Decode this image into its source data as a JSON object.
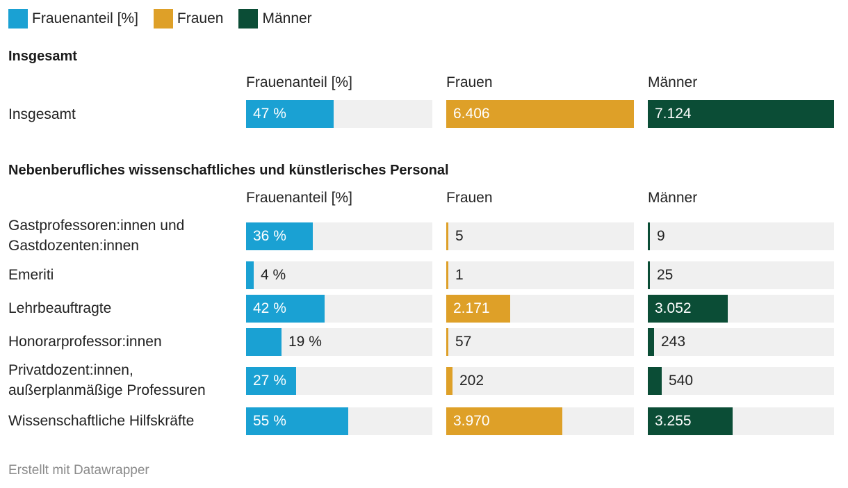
{
  "legend": [
    {
      "label": "Frauenanteil [%]",
      "color": "#1aa1d3"
    },
    {
      "label": "Frauen",
      "color": "#dea028"
    },
    {
      "label": "Männer",
      "color": "#0b4d36"
    }
  ],
  "columns": {
    "share": "Frauenanteil [%]",
    "women": "Frauen",
    "men": "Männer"
  },
  "chart_data": {
    "type": "bar",
    "scales": {
      "share_max": 100,
      "women_max": 6406,
      "men_max": 7124
    },
    "groups": [
      {
        "title": "Insgesamt",
        "rows": [
          {
            "label": "Insgesamt",
            "share": 47,
            "share_label": "47 %",
            "women": 6406,
            "women_label": "6.406",
            "men": 7124,
            "men_label": "7.124"
          }
        ]
      },
      {
        "title": "Nebenberufliches wissenschaftliches und künstlerisches Personal",
        "rows": [
          {
            "label": "Gastprofessoren:innen und Gastdozenten:innen",
            "share": 36,
            "share_label": "36 %",
            "women": 5,
            "women_label": "5",
            "men": 9,
            "men_label": "9"
          },
          {
            "label": "Emeriti",
            "share": 4,
            "share_label": "4 %",
            "women": 1,
            "women_label": "1",
            "men": 25,
            "men_label": "25"
          },
          {
            "label": "Lehrbeauftragte",
            "share": 42,
            "share_label": "42 %",
            "women": 2171,
            "women_label": "2.171",
            "men": 3052,
            "men_label": "3.052"
          },
          {
            "label": "Honorarprofessor:innen",
            "share": 19,
            "share_label": "19 %",
            "women": 57,
            "women_label": "57",
            "men": 243,
            "men_label": "243"
          },
          {
            "label": "Privatdozent:innen, außerplanmäßige Professuren",
            "share": 27,
            "share_label": "27 %",
            "women": 202,
            "women_label": "202",
            "men": 540,
            "men_label": "540"
          },
          {
            "label": "Wissenschaftliche Hilfskräfte",
            "share": 55,
            "share_label": "55 %",
            "women": 3970,
            "women_label": "3.970",
            "men": 3255,
            "men_label": "3.255"
          }
        ]
      }
    ]
  },
  "footer": "Erstellt mit Datawrapper"
}
